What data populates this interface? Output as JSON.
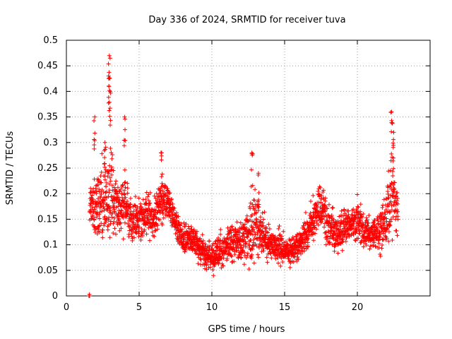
{
  "chart_data": {
    "type": "scatter",
    "title": "Day 336 of 2024, SRMTID for receiver tuva",
    "xlabel": "GPS time / hours",
    "ylabel": "SRMTID / TECUs",
    "xlim": [
      0,
      25
    ],
    "ylim": [
      0,
      0.5
    ],
    "xticks": [
      0,
      5,
      10,
      15,
      20
    ],
    "yticks": [
      0,
      0.05,
      0.1,
      0.15,
      0.2,
      0.25,
      0.3,
      0.35,
      0.4,
      0.45,
      0.5
    ],
    "xtick_labels": [
      "0",
      "5",
      "10",
      "15",
      "20"
    ],
    "ytick_labels": [
      "0",
      "0.05",
      "0.1",
      "0.15",
      "0.2",
      "0.25",
      "0.3",
      "0.35",
      "0.4",
      "0.45",
      "0.5"
    ],
    "grid": true,
    "marker": "+",
    "series": [
      {
        "name": "SRMTID",
        "color": "#ff0000",
        "envelope": {
          "x": [
            1.6,
            2.0,
            2.5,
            3.0,
            3.5,
            4.0,
            4.5,
            5.0,
            5.5,
            6.0,
            6.5,
            7.0,
            7.5,
            8.0,
            8.5,
            9.0,
            9.5,
            10.0,
            10.5,
            11.0,
            11.5,
            12.0,
            12.5,
            13.0,
            13.5,
            14.0,
            14.5,
            15.0,
            15.5,
            16.0,
            16.5,
            17.0,
            17.5,
            18.0,
            18.5,
            19.0,
            19.5,
            20.0,
            20.5,
            21.0,
            21.5,
            22.0,
            22.3,
            22.6,
            22.8
          ],
          "center": [
            0.18,
            0.17,
            0.19,
            0.2,
            0.17,
            0.18,
            0.14,
            0.15,
            0.16,
            0.15,
            0.19,
            0.18,
            0.14,
            0.11,
            0.11,
            0.1,
            0.08,
            0.07,
            0.09,
            0.1,
            0.11,
            0.1,
            0.12,
            0.14,
            0.12,
            0.1,
            0.1,
            0.09,
            0.09,
            0.1,
            0.12,
            0.15,
            0.18,
            0.14,
            0.12,
            0.13,
            0.14,
            0.15,
            0.12,
            0.12,
            0.13,
            0.15,
            0.2,
            0.18,
            0.16
          ],
          "spread": [
            0.04,
            0.06,
            0.07,
            0.09,
            0.05,
            0.06,
            0.04,
            0.04,
            0.04,
            0.04,
            0.05,
            0.03,
            0.03,
            0.03,
            0.03,
            0.03,
            0.03,
            0.03,
            0.03,
            0.03,
            0.04,
            0.04,
            0.06,
            0.07,
            0.04,
            0.03,
            0.04,
            0.03,
            0.03,
            0.03,
            0.04,
            0.04,
            0.04,
            0.04,
            0.04,
            0.04,
            0.03,
            0.04,
            0.03,
            0.03,
            0.04,
            0.06,
            0.08,
            0.05,
            0.04
          ]
        },
        "peaks": [
          {
            "x": 1.95,
            "y": 0.35
          },
          {
            "x": 2.65,
            "y": 0.3
          },
          {
            "x": 2.95,
            "y": 0.47
          },
          {
            "x": 2.9,
            "y": 0.43
          },
          {
            "x": 3.0,
            "y": 0.4
          },
          {
            "x": 4.0,
            "y": 0.35
          },
          {
            "x": 6.55,
            "y": 0.28
          },
          {
            "x": 12.75,
            "y": 0.28
          },
          {
            "x": 13.2,
            "y": 0.24
          },
          {
            "x": 22.35,
            "y": 0.36
          },
          {
            "x": 22.5,
            "y": 0.32
          }
        ],
        "outliers": [
          {
            "x": 1.55,
            "y": 0.0
          },
          {
            "x": 1.58,
            "y": 0.003
          },
          {
            "x": 1.6,
            "y": 0.0
          }
        ]
      }
    ]
  }
}
